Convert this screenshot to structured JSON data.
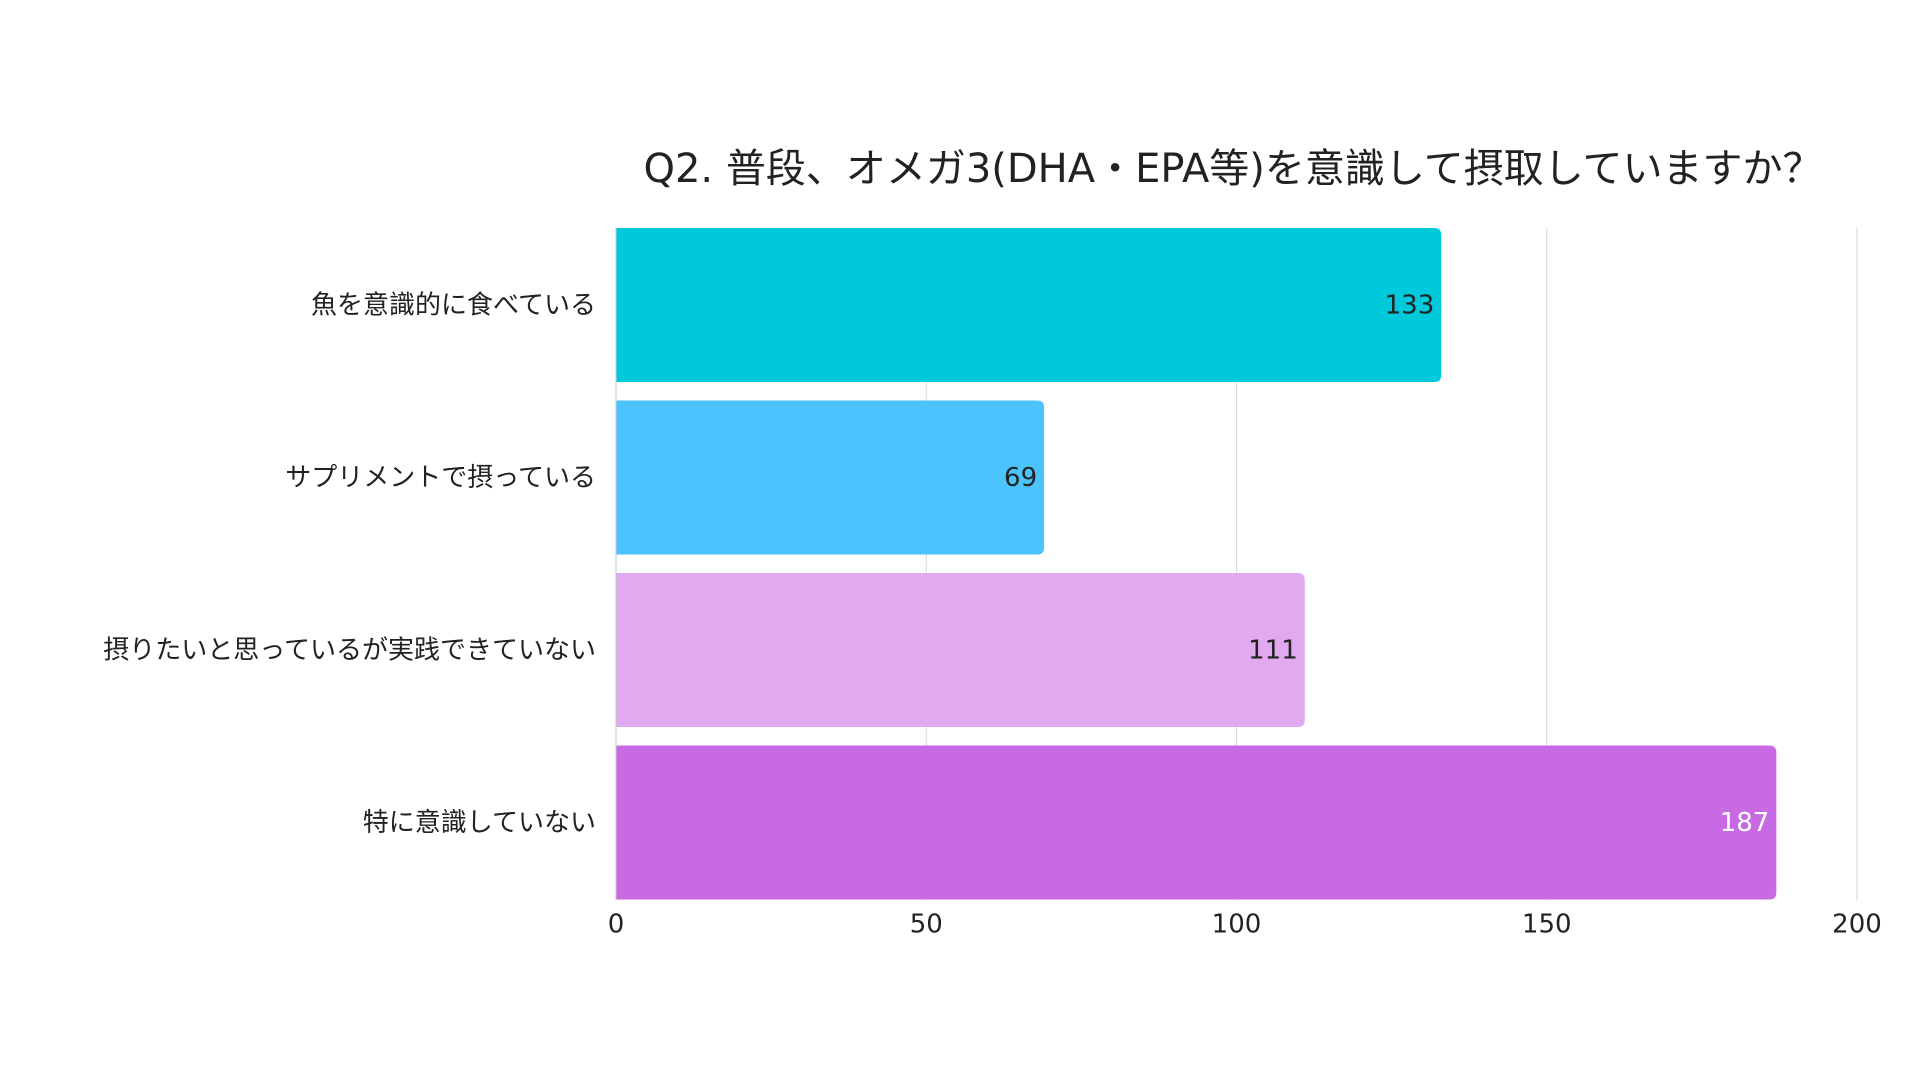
{
  "chart_data": {
    "type": "bar",
    "orientation": "horizontal",
    "title": "Q2. 普段、オメガ3(DHA・EPA等)を意識して摂取していますか？",
    "categories": [
      "魚を意識的に食べている",
      "サプリメントで摂っている",
      "摂りたいと思っているが実践できていない",
      "特に意識していない"
    ],
    "values": [
      133,
      69,
      111,
      187
    ],
    "colors": [
      "#00c9db",
      "#4bc3fc",
      "#e1a9ef",
      "#c86ae4"
    ],
    "value_label_colors": [
      "#222222",
      "#222222",
      "#222222",
      "#ffffff"
    ],
    "xlim": [
      0,
      200
    ],
    "xticks": [
      0,
      50,
      100,
      150,
      200
    ],
    "grid": true
  }
}
